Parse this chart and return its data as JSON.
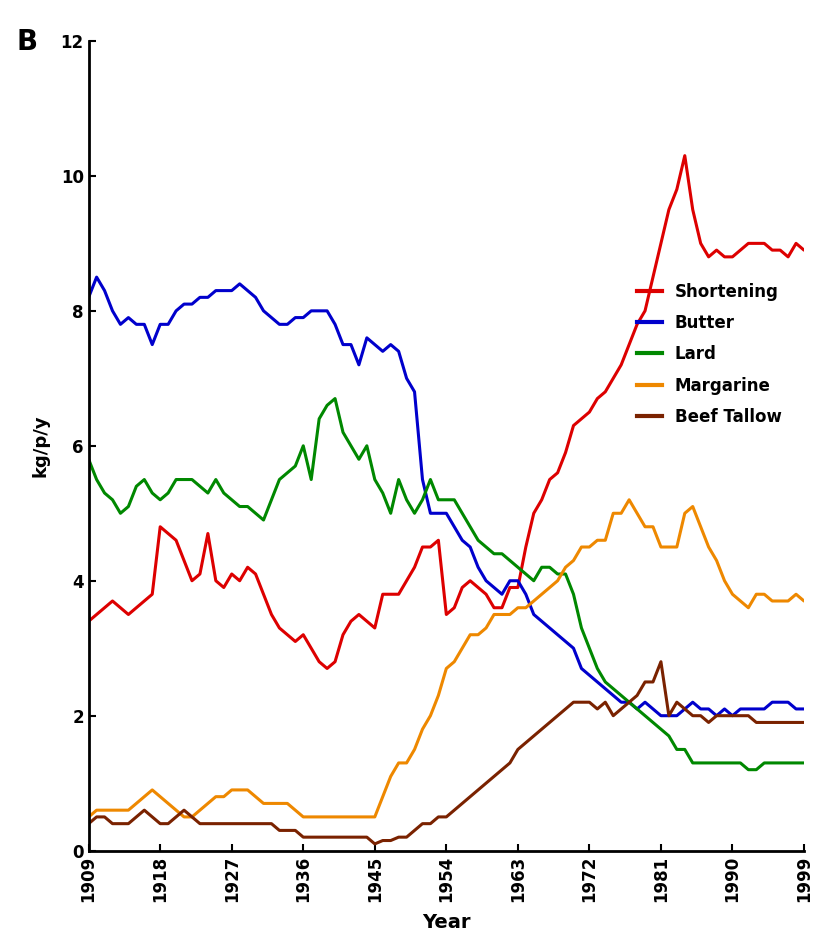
{
  "title_label": "B",
  "xlabel": "Year",
  "ylabel": "kg/p/y",
  "xlim": [
    1909,
    1999
  ],
  "ylim": [
    0,
    12
  ],
  "yticks": [
    0,
    2,
    4,
    6,
    8,
    10,
    12
  ],
  "xtick_years": [
    1909,
    1918,
    1927,
    1936,
    1945,
    1954,
    1963,
    1972,
    1981,
    1990,
    1999
  ],
  "background_color": "#ffffff",
  "legend": [
    "Shortening",
    "Butter",
    "Lard",
    "Margarine",
    "Beef Tallow"
  ],
  "colors": {
    "Shortening": "#dd0000",
    "Butter": "#0000cc",
    "Lard": "#008800",
    "Margarine": "#ee8800",
    "Beef Tallow": "#7a2200"
  },
  "shortening": {
    "years": [
      1909,
      1910,
      1911,
      1912,
      1913,
      1914,
      1915,
      1916,
      1917,
      1918,
      1919,
      1920,
      1921,
      1922,
      1923,
      1924,
      1925,
      1926,
      1927,
      1928,
      1929,
      1930,
      1931,
      1932,
      1933,
      1934,
      1935,
      1936,
      1937,
      1938,
      1939,
      1940,
      1941,
      1942,
      1943,
      1944,
      1945,
      1946,
      1947,
      1948,
      1949,
      1950,
      1951,
      1952,
      1953,
      1954,
      1955,
      1956,
      1957,
      1958,
      1959,
      1960,
      1961,
      1962,
      1963,
      1964,
      1965,
      1966,
      1967,
      1968,
      1969,
      1970,
      1971,
      1972,
      1973,
      1974,
      1975,
      1976,
      1977,
      1978,
      1979,
      1980,
      1981,
      1982,
      1983,
      1984,
      1985,
      1986,
      1987,
      1988,
      1989,
      1990,
      1991,
      1992,
      1993,
      1994,
      1995,
      1996,
      1997,
      1998,
      1999
    ],
    "values": [
      3.4,
      3.5,
      3.6,
      3.7,
      3.6,
      3.5,
      3.6,
      3.7,
      3.8,
      4.8,
      4.7,
      4.6,
      4.3,
      4.0,
      4.1,
      4.7,
      4.0,
      3.9,
      4.1,
      4.0,
      4.2,
      4.1,
      3.8,
      3.5,
      3.3,
      3.2,
      3.1,
      3.2,
      3.0,
      2.8,
      2.7,
      2.8,
      3.2,
      3.4,
      3.5,
      3.4,
      3.3,
      3.8,
      3.8,
      3.8,
      4.0,
      4.2,
      4.5,
      4.5,
      4.6,
      3.5,
      3.6,
      3.9,
      4.0,
      3.9,
      3.8,
      3.6,
      3.6,
      3.9,
      3.9,
      4.5,
      5.0,
      5.2,
      5.5,
      5.6,
      5.9,
      6.3,
      6.4,
      6.5,
      6.7,
      6.8,
      7.0,
      7.2,
      7.5,
      7.8,
      8.0,
      8.5,
      9.0,
      9.5,
      9.8,
      10.3,
      9.5,
      9.0,
      8.8,
      8.9,
      8.8,
      8.8,
      8.9,
      9.0,
      9.0,
      9.0,
      8.9,
      8.9,
      8.8,
      9.0,
      8.9
    ]
  },
  "butter": {
    "years": [
      1909,
      1910,
      1911,
      1912,
      1913,
      1914,
      1915,
      1916,
      1917,
      1918,
      1919,
      1920,
      1921,
      1922,
      1923,
      1924,
      1925,
      1926,
      1927,
      1928,
      1929,
      1930,
      1931,
      1932,
      1933,
      1934,
      1935,
      1936,
      1937,
      1938,
      1939,
      1940,
      1941,
      1942,
      1943,
      1944,
      1945,
      1946,
      1947,
      1948,
      1949,
      1950,
      1951,
      1952,
      1953,
      1954,
      1955,
      1956,
      1957,
      1958,
      1959,
      1960,
      1961,
      1962,
      1963,
      1964,
      1965,
      1966,
      1967,
      1968,
      1969,
      1970,
      1971,
      1972,
      1973,
      1974,
      1975,
      1976,
      1977,
      1978,
      1979,
      1980,
      1981,
      1982,
      1983,
      1984,
      1985,
      1986,
      1987,
      1988,
      1989,
      1990,
      1991,
      1992,
      1993,
      1994,
      1995,
      1996,
      1997,
      1998,
      1999
    ],
    "values": [
      8.2,
      8.5,
      8.3,
      8.0,
      7.8,
      7.9,
      7.8,
      7.8,
      7.5,
      7.8,
      7.8,
      8.0,
      8.1,
      8.1,
      8.2,
      8.2,
      8.3,
      8.3,
      8.3,
      8.4,
      8.3,
      8.2,
      8.0,
      7.9,
      7.8,
      7.8,
      7.9,
      7.9,
      8.0,
      8.0,
      8.0,
      7.8,
      7.5,
      7.5,
      7.2,
      7.6,
      7.5,
      7.4,
      7.5,
      7.4,
      7.0,
      6.8,
      5.5,
      5.0,
      5.0,
      5.0,
      4.8,
      4.6,
      4.5,
      4.2,
      4.0,
      3.9,
      3.8,
      4.0,
      4.0,
      3.8,
      3.5,
      3.4,
      3.3,
      3.2,
      3.1,
      3.0,
      2.7,
      2.6,
      2.5,
      2.4,
      2.3,
      2.2,
      2.2,
      2.1,
      2.2,
      2.1,
      2.0,
      2.0,
      2.0,
      2.1,
      2.2,
      2.1,
      2.1,
      2.0,
      2.1,
      2.0,
      2.1,
      2.1,
      2.1,
      2.1,
      2.2,
      2.2,
      2.2,
      2.1,
      2.1
    ]
  },
  "lard": {
    "years": [
      1909,
      1910,
      1911,
      1912,
      1913,
      1914,
      1915,
      1916,
      1917,
      1918,
      1919,
      1920,
      1921,
      1922,
      1923,
      1924,
      1925,
      1926,
      1927,
      1928,
      1929,
      1930,
      1931,
      1932,
      1933,
      1934,
      1935,
      1936,
      1937,
      1938,
      1939,
      1940,
      1941,
      1942,
      1943,
      1944,
      1945,
      1946,
      1947,
      1948,
      1949,
      1950,
      1951,
      1952,
      1953,
      1954,
      1955,
      1956,
      1957,
      1958,
      1959,
      1960,
      1961,
      1962,
      1963,
      1964,
      1965,
      1966,
      1967,
      1968,
      1969,
      1970,
      1971,
      1972,
      1973,
      1974,
      1975,
      1976,
      1977,
      1978,
      1979,
      1980,
      1981,
      1982,
      1983,
      1984,
      1985,
      1986,
      1987,
      1988,
      1989,
      1990,
      1991,
      1992,
      1993,
      1994,
      1995,
      1996,
      1997,
      1998,
      1999
    ],
    "values": [
      5.8,
      5.5,
      5.3,
      5.2,
      5.0,
      5.1,
      5.4,
      5.5,
      5.3,
      5.2,
      5.3,
      5.5,
      5.5,
      5.5,
      5.4,
      5.3,
      5.5,
      5.3,
      5.2,
      5.1,
      5.1,
      5.0,
      4.9,
      5.2,
      5.5,
      5.6,
      5.7,
      6.0,
      5.5,
      6.4,
      6.6,
      6.7,
      6.2,
      6.0,
      5.8,
      6.0,
      5.5,
      5.3,
      5.0,
      5.5,
      5.2,
      5.0,
      5.2,
      5.5,
      5.2,
      5.2,
      5.2,
      5.0,
      4.8,
      4.6,
      4.5,
      4.4,
      4.4,
      4.3,
      4.2,
      4.1,
      4.0,
      4.2,
      4.2,
      4.1,
      4.1,
      3.8,
      3.3,
      3.0,
      2.7,
      2.5,
      2.4,
      2.3,
      2.2,
      2.1,
      2.0,
      1.9,
      1.8,
      1.7,
      1.5,
      1.5,
      1.3,
      1.3,
      1.3,
      1.3,
      1.3,
      1.3,
      1.3,
      1.2,
      1.2,
      1.3,
      1.3,
      1.3,
      1.3,
      1.3,
      1.3
    ]
  },
  "margarine": {
    "years": [
      1909,
      1910,
      1911,
      1912,
      1913,
      1914,
      1915,
      1916,
      1917,
      1918,
      1919,
      1920,
      1921,
      1922,
      1923,
      1924,
      1925,
      1926,
      1927,
      1928,
      1929,
      1930,
      1931,
      1932,
      1933,
      1934,
      1935,
      1936,
      1937,
      1938,
      1939,
      1940,
      1941,
      1942,
      1943,
      1944,
      1945,
      1946,
      1947,
      1948,
      1949,
      1950,
      1951,
      1952,
      1953,
      1954,
      1955,
      1956,
      1957,
      1958,
      1959,
      1960,
      1961,
      1962,
      1963,
      1964,
      1965,
      1966,
      1967,
      1968,
      1969,
      1970,
      1971,
      1972,
      1973,
      1974,
      1975,
      1976,
      1977,
      1978,
      1979,
      1980,
      1981,
      1982,
      1983,
      1984,
      1985,
      1986,
      1987,
      1988,
      1989,
      1990,
      1991,
      1992,
      1993,
      1994,
      1995,
      1996,
      1997,
      1998,
      1999
    ],
    "values": [
      0.5,
      0.6,
      0.6,
      0.6,
      0.6,
      0.6,
      0.7,
      0.8,
      0.9,
      0.8,
      0.7,
      0.6,
      0.5,
      0.5,
      0.6,
      0.7,
      0.8,
      0.8,
      0.9,
      0.9,
      0.9,
      0.8,
      0.7,
      0.7,
      0.7,
      0.7,
      0.6,
      0.5,
      0.5,
      0.5,
      0.5,
      0.5,
      0.5,
      0.5,
      0.5,
      0.5,
      0.5,
      0.8,
      1.1,
      1.3,
      1.3,
      1.5,
      1.8,
      2.0,
      2.3,
      2.7,
      2.8,
      3.0,
      3.2,
      3.2,
      3.3,
      3.5,
      3.5,
      3.5,
      3.6,
      3.6,
      3.7,
      3.8,
      3.9,
      4.0,
      4.2,
      4.3,
      4.5,
      4.5,
      4.6,
      4.6,
      5.0,
      5.0,
      5.2,
      5.0,
      4.8,
      4.8,
      4.5,
      4.5,
      4.5,
      5.0,
      5.1,
      4.8,
      4.5,
      4.3,
      4.0,
      3.8,
      3.7,
      3.6,
      3.8,
      3.8,
      3.7,
      3.7,
      3.7,
      3.8,
      3.7
    ]
  },
  "beef_tallow": {
    "years": [
      1909,
      1910,
      1911,
      1912,
      1913,
      1914,
      1915,
      1916,
      1917,
      1918,
      1919,
      1920,
      1921,
      1922,
      1923,
      1924,
      1925,
      1926,
      1927,
      1928,
      1929,
      1930,
      1931,
      1932,
      1933,
      1934,
      1935,
      1936,
      1937,
      1938,
      1939,
      1940,
      1941,
      1942,
      1943,
      1944,
      1945,
      1946,
      1947,
      1948,
      1949,
      1950,
      1951,
      1952,
      1953,
      1954,
      1955,
      1956,
      1957,
      1958,
      1959,
      1960,
      1961,
      1962,
      1963,
      1964,
      1965,
      1966,
      1967,
      1968,
      1969,
      1970,
      1971,
      1972,
      1973,
      1974,
      1975,
      1976,
      1977,
      1978,
      1979,
      1980,
      1981,
      1982,
      1983,
      1984,
      1985,
      1986,
      1987,
      1988,
      1989,
      1990,
      1991,
      1992,
      1993,
      1994,
      1995,
      1996,
      1997,
      1998,
      1999
    ],
    "values": [
      0.4,
      0.5,
      0.5,
      0.4,
      0.4,
      0.4,
      0.5,
      0.6,
      0.5,
      0.4,
      0.4,
      0.5,
      0.6,
      0.5,
      0.4,
      0.4,
      0.4,
      0.4,
      0.4,
      0.4,
      0.4,
      0.4,
      0.4,
      0.4,
      0.3,
      0.3,
      0.3,
      0.2,
      0.2,
      0.2,
      0.2,
      0.2,
      0.2,
      0.2,
      0.2,
      0.2,
      0.1,
      0.15,
      0.15,
      0.2,
      0.2,
      0.3,
      0.4,
      0.4,
      0.5,
      0.5,
      0.6,
      0.7,
      0.8,
      0.9,
      1.0,
      1.1,
      1.2,
      1.3,
      1.5,
      1.6,
      1.7,
      1.8,
      1.9,
      2.0,
      2.1,
      2.2,
      2.2,
      2.2,
      2.1,
      2.2,
      2.0,
      2.1,
      2.2,
      2.3,
      2.5,
      2.5,
      2.8,
      2.0,
      2.2,
      2.1,
      2.0,
      2.0,
      1.9,
      2.0,
      2.0,
      2.0,
      2.0,
      2.0,
      1.9,
      1.9,
      1.9,
      1.9,
      1.9,
      1.9,
      1.9
    ]
  }
}
